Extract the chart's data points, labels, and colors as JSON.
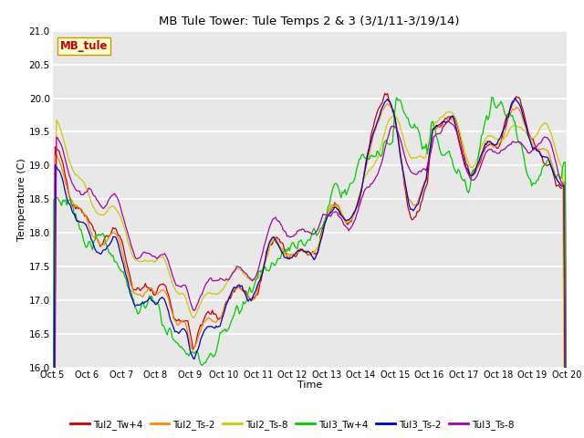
{
  "title": "MB Tule Tower: Tule Temps 2 & 3 (3/1/11-3/19/14)",
  "xlabel": "Time",
  "ylabel": "Temperature (C)",
  "ylim": [
    16.0,
    21.0
  ],
  "yticks": [
    16.0,
    16.5,
    17.0,
    17.5,
    18.0,
    18.5,
    19.0,
    19.5,
    20.0,
    20.5,
    21.0
  ],
  "xtick_labels": [
    "Oct 5",
    "Oct 6",
    "Oct 7",
    "Oct 8",
    "Oct 9",
    "Oct 10",
    "Oct 11",
    "Oct 12",
    "Oct 13",
    "Oct 14",
    "Oct 15",
    "Oct 16",
    "Oct 17",
    "Oct 18",
    "Oct 19",
    "Oct 20"
  ],
  "bg_color": "#e8e8e8",
  "grid_color": "#ffffff",
  "series_colors": {
    "Tul2_Tw+4": "#cc0000",
    "Tul2_Ts-2": "#ff8800",
    "Tul2_Ts-8": "#cccc00",
    "Tul3_Tw+4": "#00cc00",
    "Tul3_Ts-2": "#0000cc",
    "Tul3_Ts-8": "#aa00aa"
  },
  "annotation_text": "MB_tule",
  "annotation_color": "#cc0000",
  "annotation_bg": "#ffffcc",
  "annotation_border": "#cc9900",
  "figsize": [
    6.4,
    4.8
  ],
  "dpi": 100
}
